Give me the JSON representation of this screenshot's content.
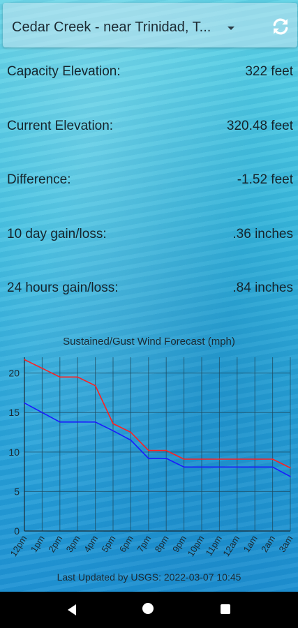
{
  "header": {
    "station_select_value": "Cedar Creek - near Trinidad, T...",
    "refresh_icon": "refresh-icon"
  },
  "stats": [
    {
      "label": "Capacity Elevation:",
      "value": "322 feet"
    },
    {
      "label": "Current Elevation:",
      "value": "320.48 feet"
    },
    {
      "label": "Difference:",
      "value": "-1.52 feet"
    },
    {
      "label": "10 day gain/loss:",
      "value": ".36 inches"
    },
    {
      "label": "24 hours gain/loss:",
      "value": ".84 inches"
    }
  ],
  "chart_data": {
    "type": "line",
    "title": "Sustained/Gust Wind Forecast (mph)",
    "categories": [
      "12pm",
      "1pm",
      "2pm",
      "3pm",
      "4pm",
      "5pm",
      "6pm",
      "7pm",
      "8pm",
      "9pm",
      "10pm",
      "11pm",
      "12am",
      "1am",
      "2am",
      "3am"
    ],
    "ylim": [
      0,
      22
    ],
    "yticks": [
      0,
      5,
      10,
      15,
      20
    ],
    "grid": true,
    "series": [
      {
        "color": "#ff2020",
        "values": [
          21.7,
          20.6,
          19.5,
          19.5,
          18.4,
          13.6,
          12.5,
          10.2,
          10.2,
          9.1,
          9.1,
          9.1,
          9.1,
          9.1,
          9.1,
          8.0
        ]
      },
      {
        "color": "#1a1aff",
        "values": [
          16.2,
          15.0,
          13.8,
          13.8,
          13.8,
          12.7,
          11.5,
          9.2,
          9.2,
          8.1,
          8.1,
          8.1,
          8.1,
          8.1,
          8.1,
          6.9
        ]
      }
    ]
  },
  "footer": {
    "last_updated": "Last Updated by USGS:  2022-03-07 10:45"
  }
}
